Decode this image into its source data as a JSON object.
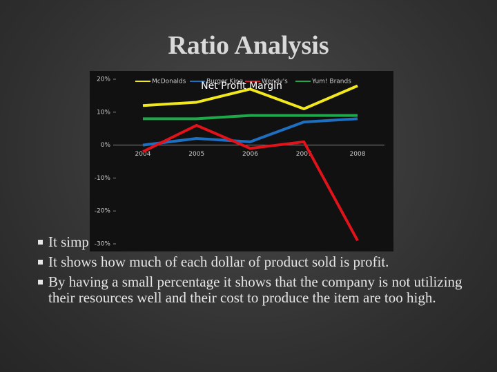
{
  "slide_title": "Ratio Analysis",
  "bullets": [
    "It simp",
    "It shows how much of each dollar of product sold is profit.",
    "By having a small percentage it shows that the company is not utilizing their resources well and their cost to produce the item are too high."
  ],
  "chart_data": {
    "type": "line",
    "title": "Net Profit Margin",
    "legend": "top",
    "categories": [
      "2004",
      "2005",
      "2006",
      "2007",
      "2008"
    ],
    "series": [
      {
        "name": "McDonalds",
        "color": "#f2e81e",
        "values": [
          12,
          13,
          17,
          11,
          18
        ]
      },
      {
        "name": "Burger King",
        "color": "#1f6fc0",
        "values": [
          0,
          2,
          1,
          7,
          8
        ]
      },
      {
        "name": "Wendy's",
        "color": "#e0121a",
        "values": [
          -2,
          6,
          -1,
          1,
          -29
        ]
      },
      {
        "name": "Yum! Brands",
        "color": "#1fa84a",
        "values": [
          8,
          8,
          9,
          9,
          9
        ]
      }
    ],
    "ylim": [
      -30,
      20
    ],
    "yticks": [
      {
        "value": -30,
        "label": "-30%"
      },
      {
        "value": -20,
        "label": "-20%"
      },
      {
        "value": -10,
        "label": "-10%"
      },
      {
        "value": 0,
        "label": "0%"
      },
      {
        "value": 10,
        "label": "10%"
      },
      {
        "value": 20,
        "label": "20%"
      }
    ]
  }
}
